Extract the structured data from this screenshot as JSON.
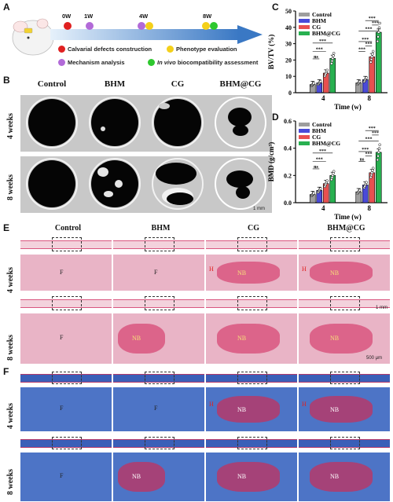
{
  "panel_labels": {
    "a": "A",
    "b": "B",
    "c": "C",
    "d": "D",
    "e": "E",
    "f": "F"
  },
  "timeline": {
    "weeks": [
      "0W",
      "1W",
      "4W",
      "8W"
    ],
    "legend": [
      {
        "label": "Calvarial defects construction",
        "color": "#e02020"
      },
      {
        "label": "Phenotype evaluation",
        "color": "#f4d01a"
      },
      {
        "label": "Mechanism analysis",
        "color": "#b26ad8"
      },
      {
        "label_italic": "In vivo",
        "label": " biocompatibility assessment",
        "color": "#2ec82e"
      }
    ]
  },
  "groups": [
    "Control",
    "BHM",
    "CG",
    "BHM@CG"
  ],
  "row_labels": [
    "4 weeks",
    "8 weeks"
  ],
  "ct_scale": "1 mm",
  "histo_scale_low": "1 mm",
  "histo_scale_high": "500 μm",
  "tissue_tags": {
    "fibrous": "F",
    "new_bone": "NB",
    "hydrogel": "H"
  },
  "colors": {
    "control": "#9e9e9e",
    "bhm": "#4a4ad8",
    "cg": "#e85050",
    "bhmcg": "#28b050"
  },
  "chart_data": [
    {
      "type": "bar",
      "ylabel": "BV/TV (%)",
      "xlabel": "Time (w)",
      "categories": [
        "4",
        "8"
      ],
      "ylim": [
        0,
        50
      ],
      "yticks": [
        "0",
        "10",
        "20",
        "30",
        "40",
        "50"
      ],
      "legend": [
        "Control",
        "BHM",
        "CG",
        "BHM@CG"
      ],
      "series": [
        {
          "name": "Control",
          "values": [
            5,
            6
          ]
        },
        {
          "name": "BHM",
          "values": [
            6,
            8
          ]
        },
        {
          "name": "CG",
          "values": [
            12,
            22
          ]
        },
        {
          "name": "BHM@CG",
          "values": [
            21,
            37
          ]
        }
      ],
      "significance": [
        "ns",
        "***",
        "***",
        "***",
        "***",
        "***",
        "***",
        "***",
        "***",
        "***",
        "***"
      ]
    },
    {
      "type": "bar",
      "ylabel": "BMD (g/cm³)",
      "xlabel": "Time (w)",
      "categories": [
        "4",
        "8"
      ],
      "ylim": [
        0,
        0.6
      ],
      "yticks": [
        "0.0",
        "0.2",
        "0.4",
        "0.6"
      ],
      "legend": [
        "Control",
        "BHM",
        "CG",
        "BHM@CG"
      ],
      "series": [
        {
          "name": "Control",
          "values": [
            0.06,
            0.08
          ]
        },
        {
          "name": "BHM",
          "values": [
            0.09,
            0.13
          ]
        },
        {
          "name": "CG",
          "values": [
            0.14,
            0.22
          ]
        },
        {
          "name": "BHM@CG",
          "values": [
            0.2,
            0.37
          ]
        }
      ],
      "significance": [
        "ns",
        "***",
        "***",
        "***",
        "***",
        "ns",
        "***",
        "***",
        "***",
        "***",
        "***"
      ]
    }
  ]
}
